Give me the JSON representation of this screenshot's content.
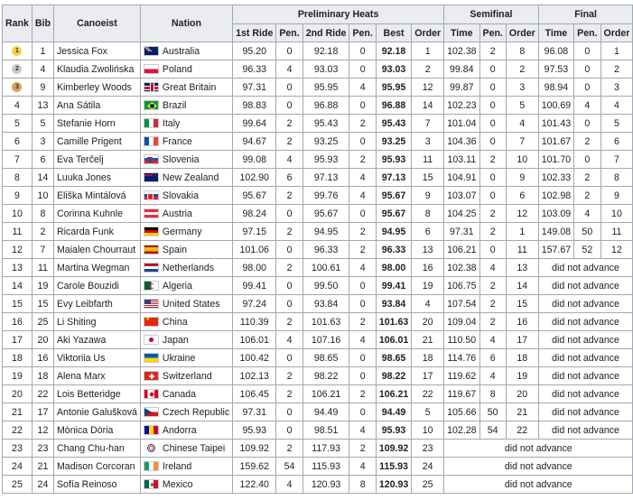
{
  "headers": {
    "rank": "Rank",
    "bib": "Bib",
    "canoeist": "Canoeist",
    "nation": "Nation",
    "preliminary": "Preliminary Heats",
    "semifinal": "Semifinal",
    "final": "Final",
    "first_ride": "1st Ride",
    "pen": "Pen.",
    "second_ride": "2nd Ride",
    "best": "Best",
    "order": "Order",
    "time": "Time"
  },
  "dna_text": "did not advance",
  "rows": [
    {
      "rank": "1",
      "medal": "gold",
      "bib": "1",
      "name": "Jessica Fox",
      "flag": "aus",
      "nation": "Australia",
      "r1": "95.20",
      "p1": "0",
      "r2": "92.18",
      "p2": "0",
      "best": "92.18",
      "order": "1",
      "sf_time": "102.38",
      "sf_pen": "2",
      "sf_order": "8",
      "f_time": "96.08",
      "f_pen": "0",
      "f_order": "1"
    },
    {
      "rank": "2",
      "medal": "silver",
      "bib": "4",
      "name": "Klaudia Zwolińska",
      "flag": "pol",
      "nation": "Poland",
      "r1": "96.33",
      "p1": "4",
      "r2": "93.03",
      "p2": "0",
      "best": "93.03",
      "order": "2",
      "sf_time": "99.84",
      "sf_pen": "0",
      "sf_order": "2",
      "f_time": "97.53",
      "f_pen": "0",
      "f_order": "2"
    },
    {
      "rank": "3",
      "medal": "bronze",
      "bib": "9",
      "name": "Kimberley Woods",
      "flag": "gbr",
      "nation": "Great Britain",
      "r1": "97.31",
      "p1": "0",
      "r2": "95.95",
      "p2": "4",
      "best": "95.95",
      "order": "12",
      "sf_time": "99.87",
      "sf_pen": "0",
      "sf_order": "3",
      "f_time": "98.94",
      "f_pen": "0",
      "f_order": "3"
    },
    {
      "rank": "4",
      "medal": "",
      "bib": "13",
      "name": "Ana Sátila",
      "flag": "bra",
      "nation": "Brazil",
      "r1": "98.83",
      "p1": "0",
      "r2": "96.88",
      "p2": "0",
      "best": "96.88",
      "order": "14",
      "sf_time": "102.23",
      "sf_pen": "0",
      "sf_order": "5",
      "f_time": "100.69",
      "f_pen": "4",
      "f_order": "4"
    },
    {
      "rank": "5",
      "medal": "",
      "bib": "5",
      "name": "Stefanie Horn",
      "flag": "ita",
      "nation": "Italy",
      "r1": "99.64",
      "p1": "2",
      "r2": "95.43",
      "p2": "2",
      "best": "95.43",
      "order": "7",
      "sf_time": "101.04",
      "sf_pen": "0",
      "sf_order": "4",
      "f_time": "101.43",
      "f_pen": "0",
      "f_order": "5"
    },
    {
      "rank": "6",
      "medal": "",
      "bib": "3",
      "name": "Camille Prigent",
      "flag": "fra",
      "nation": "France",
      "r1": "94.67",
      "p1": "2",
      "r2": "93.25",
      "p2": "0",
      "best": "93.25",
      "order": "3",
      "sf_time": "104.36",
      "sf_pen": "0",
      "sf_order": "7",
      "f_time": "101.67",
      "f_pen": "2",
      "f_order": "6"
    },
    {
      "rank": "7",
      "medal": "",
      "bib": "6",
      "name": "Eva Terčelj",
      "flag": "slo",
      "nation": "Slovenia",
      "r1": "99.08",
      "p1": "4",
      "r2": "95.93",
      "p2": "2",
      "best": "95.93",
      "order": "11",
      "sf_time": "103.11",
      "sf_pen": "2",
      "sf_order": "10",
      "f_time": "101.70",
      "f_pen": "0",
      "f_order": "7"
    },
    {
      "rank": "8",
      "medal": "",
      "bib": "14",
      "name": "Luuka Jones",
      "flag": "nzl",
      "nation": "New Zealand",
      "r1": "102.90",
      "p1": "6",
      "r2": "97.13",
      "p2": "4",
      "best": "97.13",
      "order": "15",
      "sf_time": "104.91",
      "sf_pen": "0",
      "sf_order": "9",
      "f_time": "102.33",
      "f_pen": "2",
      "f_order": "8"
    },
    {
      "rank": "9",
      "medal": "",
      "bib": "10",
      "name": "Eliška Mintálová",
      "flag": "svk",
      "nation": "Slovakia",
      "r1": "95.67",
      "p1": "2",
      "r2": "99.76",
      "p2": "4",
      "best": "95.67",
      "order": "9",
      "sf_time": "103.07",
      "sf_pen": "0",
      "sf_order": "6",
      "f_time": "102.98",
      "f_pen": "2",
      "f_order": "9"
    },
    {
      "rank": "10",
      "medal": "",
      "bib": "8",
      "name": "Corinna Kuhnle",
      "flag": "aut",
      "nation": "Austria",
      "r1": "98.24",
      "p1": "0",
      "r2": "95.67",
      "p2": "0",
      "best": "95.67",
      "order": "8",
      "sf_time": "104.25",
      "sf_pen": "2",
      "sf_order": "12",
      "f_time": "103.09",
      "f_pen": "4",
      "f_order": "10"
    },
    {
      "rank": "11",
      "medal": "",
      "bib": "2",
      "name": "Ricarda Funk",
      "flag": "ger",
      "nation": "Germany",
      "r1": "97.15",
      "p1": "2",
      "r2": "94.95",
      "p2": "2",
      "best": "94.95",
      "order": "6",
      "sf_time": "97.31",
      "sf_pen": "2",
      "sf_order": "1",
      "f_time": "149.08",
      "f_pen": "50",
      "f_order": "11"
    },
    {
      "rank": "12",
      "medal": "",
      "bib": "7",
      "name": "Maialen Chourraut",
      "flag": "esp",
      "nation": "Spain",
      "r1": "101.06",
      "p1": "0",
      "r2": "96.33",
      "p2": "2",
      "best": "96.33",
      "order": "13",
      "sf_time": "106.21",
      "sf_pen": "0",
      "sf_order": "11",
      "f_time": "157.67",
      "f_pen": "52",
      "f_order": "12"
    },
    {
      "rank": "13",
      "medal": "",
      "bib": "11",
      "name": "Martina Wegman",
      "flag": "ned",
      "nation": "Netherlands",
      "r1": "98.00",
      "p1": "2",
      "r2": "100.61",
      "p2": "4",
      "best": "98.00",
      "order": "16",
      "sf_time": "102.38",
      "sf_pen": "4",
      "sf_order": "13",
      "f_time": "",
      "f_pen": "",
      "f_order": ""
    },
    {
      "rank": "14",
      "medal": "",
      "bib": "19",
      "name": "Carole Bouzidi",
      "flag": "alg",
      "nation": "Algeria",
      "r1": "99.41",
      "p1": "0",
      "r2": "99.50",
      "p2": "0",
      "best": "99.41",
      "order": "19",
      "sf_time": "106.75",
      "sf_pen": "2",
      "sf_order": "14",
      "f_time": "",
      "f_pen": "",
      "f_order": ""
    },
    {
      "rank": "15",
      "medal": "",
      "bib": "15",
      "name": "Evy Leibfarth",
      "flag": "usa",
      "nation": "United States",
      "r1": "97.24",
      "p1": "0",
      "r2": "93.84",
      "p2": "0",
      "best": "93.84",
      "order": "4",
      "sf_time": "107.54",
      "sf_pen": "2",
      "sf_order": "15",
      "f_time": "",
      "f_pen": "",
      "f_order": ""
    },
    {
      "rank": "16",
      "medal": "",
      "bib": "25",
      "name": "Li Shiting",
      "flag": "chn",
      "nation": "China",
      "r1": "110.39",
      "p1": "2",
      "r2": "101.63",
      "p2": "2",
      "best": "101.63",
      "order": "20",
      "sf_time": "109.04",
      "sf_pen": "2",
      "sf_order": "16",
      "f_time": "",
      "f_pen": "",
      "f_order": ""
    },
    {
      "rank": "17",
      "medal": "",
      "bib": "20",
      "name": "Aki Yazawa",
      "flag": "jpn",
      "nation": "Japan",
      "r1": "106.01",
      "p1": "4",
      "r2": "107.16",
      "p2": "4",
      "best": "106.01",
      "order": "21",
      "sf_time": "110.50",
      "sf_pen": "4",
      "sf_order": "17",
      "f_time": "",
      "f_pen": "",
      "f_order": ""
    },
    {
      "rank": "18",
      "medal": "",
      "bib": "16",
      "name": "Viktoriia Us",
      "flag": "ukr",
      "nation": "Ukraine",
      "r1": "100.42",
      "p1": "0",
      "r2": "98.65",
      "p2": "0",
      "best": "98.65",
      "order": "18",
      "sf_time": "114.76",
      "sf_pen": "6",
      "sf_order": "18",
      "f_time": "",
      "f_pen": "",
      "f_order": ""
    },
    {
      "rank": "19",
      "medal": "",
      "bib": "18",
      "name": "Alena Marx",
      "flag": "sui",
      "nation": "Switzerland",
      "r1": "102.13",
      "p1": "2",
      "r2": "98.22",
      "p2": "0",
      "best": "98.22",
      "order": "17",
      "sf_time": "119.62",
      "sf_pen": "4",
      "sf_order": "19",
      "f_time": "",
      "f_pen": "",
      "f_order": ""
    },
    {
      "rank": "20",
      "medal": "",
      "bib": "22",
      "name": "Lois Betteridge",
      "flag": "can",
      "nation": "Canada",
      "r1": "106.45",
      "p1": "2",
      "r2": "106.21",
      "p2": "2",
      "best": "106.21",
      "order": "22",
      "sf_time": "119.67",
      "sf_pen": "8",
      "sf_order": "20",
      "f_time": "",
      "f_pen": "",
      "f_order": ""
    },
    {
      "rank": "21",
      "medal": "",
      "bib": "17",
      "name": "Antonie Galušková",
      "flag": "cze",
      "nation": "Czech Republic",
      "r1": "97.31",
      "p1": "0",
      "r2": "94.49",
      "p2": "0",
      "best": "94.49",
      "order": "5",
      "sf_time": "105.66",
      "sf_pen": "50",
      "sf_order": "21",
      "f_time": "",
      "f_pen": "",
      "f_order": ""
    },
    {
      "rank": "22",
      "medal": "",
      "bib": "12",
      "name": "Mònica Dòria",
      "flag": "and",
      "nation": "Andorra",
      "r1": "95.93",
      "p1": "0",
      "r2": "98.51",
      "p2": "4",
      "best": "95.93",
      "order": "10",
      "sf_time": "102.28",
      "sf_pen": "54",
      "sf_order": "22",
      "f_time": "",
      "f_pen": "",
      "f_order": ""
    },
    {
      "rank": "23",
      "medal": "",
      "bib": "23",
      "name": "Chang Chu-han",
      "flag": "tpe",
      "nation": "Chinese Taipei",
      "r1": "109.92",
      "p1": "2",
      "r2": "117.93",
      "p2": "2",
      "best": "109.92",
      "order": "23",
      "sf_time": "",
      "sf_pen": "",
      "sf_order": "",
      "f_time": "",
      "f_pen": "",
      "f_order": ""
    },
    {
      "rank": "24",
      "medal": "",
      "bib": "21",
      "name": "Madison Corcoran",
      "flag": "irl",
      "nation": "Ireland",
      "r1": "159.62",
      "p1": "54",
      "r2": "115.93",
      "p2": "4",
      "best": "115.93",
      "order": "24",
      "sf_time": "",
      "sf_pen": "",
      "sf_order": "",
      "f_time": "",
      "f_pen": "",
      "f_order": ""
    },
    {
      "rank": "25",
      "medal": "",
      "bib": "24",
      "name": "Sofía Reinoso",
      "flag": "mex",
      "nation": "Mexico",
      "r1": "122.40",
      "p1": "4",
      "r2": "120.93",
      "p2": "8",
      "best": "120.93",
      "order": "25",
      "sf_time": "",
      "sf_pen": "",
      "sf_order": "",
      "f_time": "",
      "f_pen": "",
      "f_order": ""
    }
  ],
  "colors": {
    "header_bg": "#eaecf0",
    "border": "#a2a9b1",
    "gold": "#f7d247",
    "silver": "#c9c9c9",
    "bronze": "#d9a35b"
  }
}
